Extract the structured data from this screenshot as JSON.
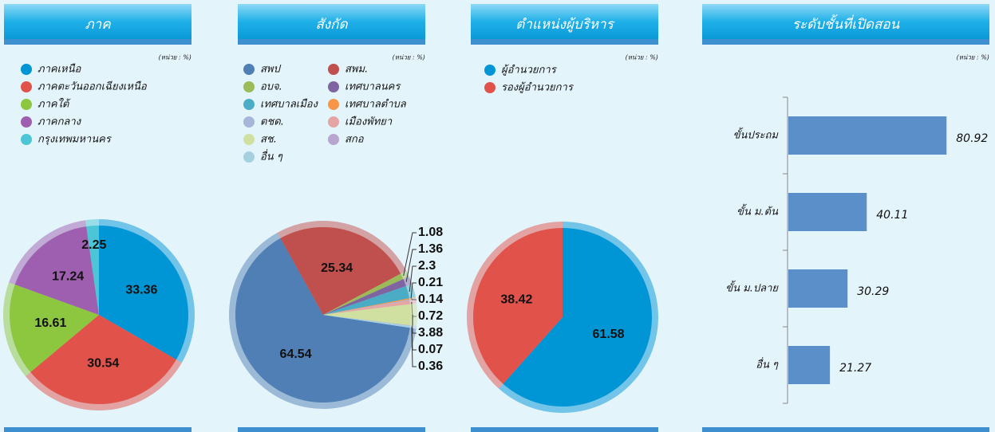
{
  "chart_data": [
    {
      "type": "pie",
      "title": "ภาค",
      "unit": "(หน่วย : %)",
      "categories": [
        "ภาคเหนือ",
        "ภาคตะวันออกเฉียงเหนือ",
        "ภาคใต้",
        "ภาคกลาง",
        "กรุงเทพมหานคร"
      ],
      "values": [
        33.36,
        30.54,
        16.61,
        17.24,
        2.25
      ],
      "colors": [
        "#0096d6",
        "#e0524a",
        "#8dc63f",
        "#9e5fb0",
        "#4cc6d6"
      ]
    },
    {
      "type": "pie",
      "title": "สังกัด",
      "unit": "(หน่วย : %)",
      "categories": [
        "สพป",
        "สพม.",
        "อบจ.",
        "เทศบาลนคร",
        "เทศบาลเมือง",
        "เทศบาลตำบล",
        "ตชด.",
        "เมืองพัทยา",
        "สช.",
        "สกอ",
        "อื่น ๆ"
      ],
      "values": [
        64.54,
        25.34,
        1.08,
        1.36,
        2.3,
        0.21,
        0.14,
        0.72,
        3.88,
        0.07,
        0.36
      ],
      "colors": [
        "#4f7fb5",
        "#c0504d",
        "#9bbb59",
        "#8064a2",
        "#4bacc6",
        "#f79646",
        "#a5b6d8",
        "#e6a5a5",
        "#d0e0a0",
        "#b8a5d0",
        "#a5d0e0"
      ]
    },
    {
      "type": "pie",
      "title": "ตำแหน่งผู้บริหาร",
      "unit": "(หน่วย : %)",
      "categories": [
        "ผู้อำนวยการ",
        "รองผู้อำนวยการ"
      ],
      "values": [
        61.58,
        38.42
      ],
      "colors": [
        "#0096d6",
        "#e0524a"
      ]
    },
    {
      "type": "bar",
      "orientation": "horizontal",
      "title": "ระดับชั้นที่เปิดสอน",
      "unit": "(หน่วย : %)",
      "categories": [
        "ขั้นประถม",
        "ขั้น ม.ต้น",
        "ขั้น ม.ปลาย",
        "อื่น ๆ"
      ],
      "values": [
        80.92,
        40.11,
        30.29,
        21.27
      ],
      "color": "#5b8fc9"
    }
  ]
}
